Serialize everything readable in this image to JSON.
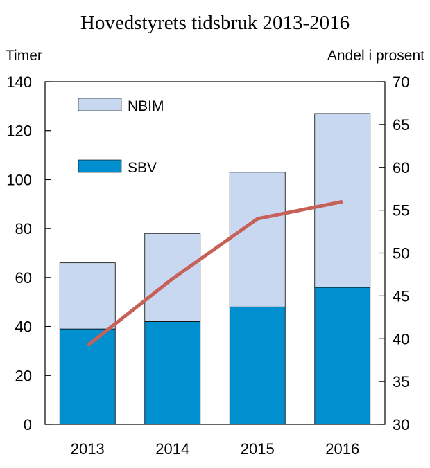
{
  "chart_data": {
    "type": "bar",
    "title": "Hovedstyrets tidsbruk 2013-2016",
    "ylabel": "Timer",
    "y2label": "Andel i prosent",
    "categories": [
      "2013",
      "2014",
      "2015",
      "2016"
    ],
    "ylim": [
      0,
      140
    ],
    "y_ticks": [
      "0",
      "20",
      "40",
      "60",
      "80",
      "100",
      "120",
      "140"
    ],
    "y2lim": [
      30,
      70
    ],
    "y2_ticks": [
      "30",
      "35",
      "40",
      "45",
      "50",
      "55",
      "60",
      "65",
      "70"
    ],
    "stacked": true,
    "series": [
      {
        "name": "SBV",
        "type": "bar",
        "axis": "left",
        "color": "#0090d0",
        "values": [
          39,
          42,
          48,
          56
        ]
      },
      {
        "name": "NBIM",
        "type": "bar",
        "axis": "left",
        "color": "#c8d8f0",
        "values": [
          27,
          36,
          55,
          71
        ]
      },
      {
        "type": "line",
        "axis": "right",
        "color": "#c8605a",
        "values": [
          39.2,
          47.0,
          54.0,
          56.0
        ]
      }
    ],
    "legend": {
      "position": "top-left",
      "order": [
        "NBIM",
        "SBV"
      ]
    },
    "grid": false
  }
}
